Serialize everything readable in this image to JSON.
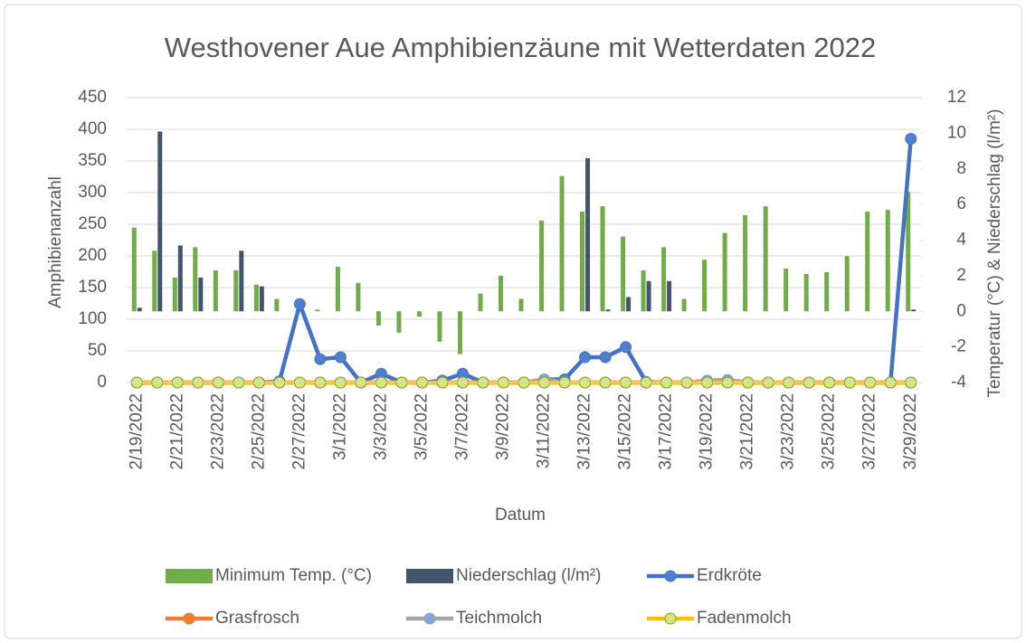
{
  "chart_data": {
    "type": "combo",
    "title": "Westhovener Aue Amphibienzäune mit Wetterdaten 2022",
    "x_label": "Datum",
    "y_label": "Amphibienanzahl",
    "y2_label": "Temperatur (°C) & Niederschlag (l/m²)",
    "categories": [
      "2/19/2022",
      null,
      "2/21/2022",
      null,
      "2/23/2022",
      null,
      "2/25/2022",
      null,
      "2/27/2022",
      null,
      "3/1/2022",
      null,
      "3/3/2022",
      null,
      "3/5/2022",
      null,
      "3/7/2022",
      null,
      "3/9/2022",
      null,
      "3/11/2022",
      null,
      "3/13/2022",
      null,
      "3/15/2022",
      null,
      "3/17/2022",
      null,
      "3/19/2022",
      null,
      "3/21/2022",
      null,
      "3/23/2022",
      null,
      "3/25/2022",
      null,
      "3/27/2022",
      null,
      "3/29/2022"
    ],
    "ylim": [
      0,
      450
    ],
    "yticks": [
      0,
      50,
      100,
      150,
      200,
      250,
      300,
      350,
      400,
      450
    ],
    "y2lim": [
      -4,
      12
    ],
    "y2ticks": [
      -4,
      -2,
      0,
      2,
      4,
      6,
      8,
      10,
      12
    ],
    "legend": "bottom",
    "series": [
      {
        "name": "Minimum Temp. (°C)",
        "type": "bar",
        "axis": "y2",
        "color": "#70ad47",
        "values": [
          4.7,
          3.4,
          1.9,
          3.6,
          2.3,
          2.3,
          1.5,
          0.7,
          0,
          0.1,
          2.5,
          1.6,
          -0.8,
          -1.2,
          -0.3,
          -1.7,
          -2.4,
          1.0,
          2.0,
          0.7,
          5.1,
          7.6,
          5.6,
          5.9,
          4.2,
          2.3,
          3.6,
          0.7,
          2.9,
          4.4,
          5.4,
          5.9,
          2.4,
          2.1,
          2.2,
          3.1,
          5.6,
          5.7,
          6.7
        ]
      },
      {
        "name": "Niederschlag (l/m²)",
        "type": "bar",
        "axis": "y2",
        "color": "#44546a",
        "values": [
          0.2,
          10.1,
          3.7,
          1.9,
          0,
          3.4,
          1.4,
          0,
          0,
          0,
          0,
          0,
          0,
          0,
          0,
          0,
          0,
          0,
          0,
          0,
          0,
          0,
          8.6,
          0.1,
          0.8,
          1.7,
          1.7,
          0,
          0,
          0,
          0,
          0,
          0,
          0,
          0,
          0,
          0,
          0,
          0.1
        ]
      },
      {
        "name": "Erdkröte",
        "type": "line",
        "color": "#4472c4",
        "marker": "#4f7fd0",
        "values": [
          0,
          0,
          0,
          0,
          0,
          0,
          0,
          2,
          124,
          37,
          40,
          0,
          14,
          0,
          0,
          3,
          14,
          0,
          0,
          0,
          5,
          5,
          40,
          40,
          56,
          1,
          0,
          0,
          3,
          4,
          0,
          0,
          0,
          0,
          0,
          0,
          0,
          0,
          385
        ]
      },
      {
        "name": "Grasfrosch",
        "type": "line",
        "color": "#ed7d31",
        "marker": "#ed7d31",
        "values": [
          0,
          0,
          0,
          0,
          0,
          0,
          0,
          0,
          0,
          0,
          0,
          0,
          0,
          0,
          0,
          0,
          0,
          0,
          0,
          0,
          0,
          0,
          0,
          0,
          0,
          0,
          0,
          0,
          0,
          0,
          0,
          0,
          0,
          0,
          0,
          0,
          0,
          0,
          0
        ]
      },
      {
        "name": "Teichmolch",
        "type": "line",
        "color": "#a5a5a5",
        "marker": "#7fa7d9",
        "values": [
          0,
          0,
          0,
          0,
          0,
          0,
          0,
          0,
          0,
          0,
          0,
          0,
          0,
          0,
          0,
          0,
          0,
          0,
          0,
          0,
          5,
          0,
          0,
          0,
          0,
          0,
          0,
          0,
          3,
          4,
          0,
          0,
          0,
          0,
          0,
          0,
          0,
          0,
          0
        ]
      },
      {
        "name": "Fadenmolch",
        "type": "line",
        "color": "#ffc000",
        "marker": "#d4e87a",
        "values": [
          0,
          0,
          0,
          0,
          0,
          0,
          0,
          0,
          0,
          0,
          0,
          0,
          0,
          0,
          0,
          0,
          0,
          0,
          0,
          0,
          0,
          0,
          0,
          0,
          0,
          0,
          0,
          0,
          0,
          0,
          0,
          0,
          0,
          0,
          0,
          0,
          0,
          0,
          0
        ]
      }
    ]
  }
}
